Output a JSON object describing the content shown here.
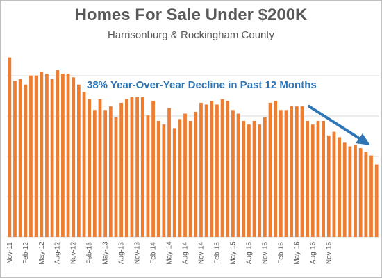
{
  "chart_data": {
    "type": "bar",
    "title": "Homes For Sale Under $200K",
    "subtitle": "Harrisonburg & Rockingham County",
    "annotation": "38% Year-Over-Year Decline in Past 12 Months",
    "xlabel": "",
    "ylabel": "",
    "ylim": [
      0,
      1
    ],
    "grid": "horizontal",
    "bar_color": "#ed7d31",
    "annotation_color": "#2e75b6",
    "gridline_color": "#d9d9d9",
    "tick_labels": [
      "Nov-11",
      "Feb-12",
      "May-12",
      "Aug-12",
      "Nov-12",
      "Feb-13",
      "May-13",
      "Aug-13",
      "Nov-13",
      "Feb-14",
      "May-14",
      "Aug-14",
      "Nov-14",
      "Feb-15",
      "May-15",
      "Aug-15",
      "Nov-15",
      "Feb-16",
      "May-16",
      "Aug-16",
      "Nov-16"
    ],
    "values": [
      0.99,
      0.86,
      0.87,
      0.84,
      0.89,
      0.89,
      0.91,
      0.9,
      0.87,
      0.92,
      0.9,
      0.9,
      0.88,
      0.84,
      0.8,
      0.76,
      0.7,
      0.76,
      0.7,
      0.72,
      0.66,
      0.74,
      0.76,
      0.77,
      0.77,
      0.77,
      0.67,
      0.75,
      0.64,
      0.62,
      0.71,
      0.6,
      0.65,
      0.68,
      0.64,
      0.69,
      0.74,
      0.73,
      0.75,
      0.73,
      0.76,
      0.75,
      0.7,
      0.68,
      0.64,
      0.62,
      0.64,
      0.62,
      0.66,
      0.74,
      0.75,
      0.7,
      0.7,
      0.72,
      0.72,
      0.72,
      0.64,
      0.62,
      0.64,
      0.64,
      0.56,
      0.58,
      0.55,
      0.52,
      0.5,
      0.51,
      0.49,
      0.47,
      0.45,
      0.4
    ]
  }
}
